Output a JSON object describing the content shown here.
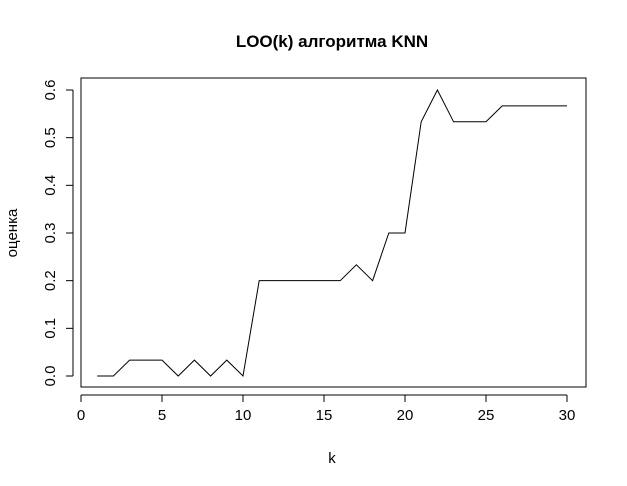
{
  "chart_data": {
    "type": "line",
    "title": "LOO(k) алгоритма KNN",
    "xlabel": "k",
    "ylabel": "оценка",
    "xlim": [
      0,
      30
    ],
    "ylim": [
      0,
      0.6
    ],
    "x_ticks": [
      0,
      5,
      10,
      15,
      20,
      25,
      30
    ],
    "y_ticks": [
      0.0,
      0.1,
      0.2,
      0.3,
      0.4,
      0.5,
      0.6
    ],
    "x_tick_labels": [
      "0",
      "5",
      "10",
      "15",
      "20",
      "25",
      "30"
    ],
    "y_tick_labels": [
      "0.0",
      "0.1",
      "0.2",
      "0.3",
      "0.4",
      "0.5",
      "0.6"
    ],
    "grid": false,
    "series": [
      {
        "x": [
          1,
          2,
          3,
          4,
          5,
          6,
          7,
          8,
          9,
          10,
          11,
          12,
          13,
          14,
          15,
          16,
          17,
          18,
          19,
          20,
          21,
          22,
          23,
          24,
          25,
          26,
          27,
          28,
          29,
          30
        ],
        "values": [
          0.0,
          0.0,
          0.0333,
          0.0333,
          0.0333,
          0.0,
          0.0333,
          0.0,
          0.0333,
          0.0,
          0.2,
          0.2,
          0.2,
          0.2,
          0.2,
          0.2,
          0.2333,
          0.2,
          0.3,
          0.3,
          0.5333,
          0.6,
          0.5333,
          0.5333,
          0.5333,
          0.5667,
          0.5667,
          0.5667,
          0.5667,
          0.5667
        ],
        "color": "#000000"
      }
    ]
  }
}
